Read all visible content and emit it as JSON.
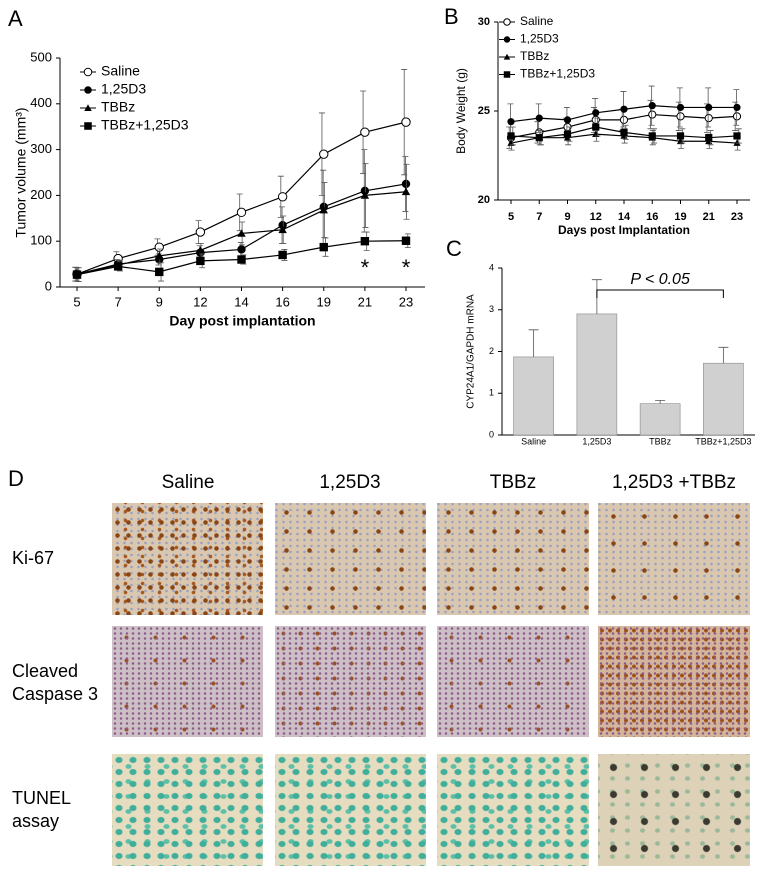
{
  "chart_data": [
    {
      "type": "line",
      "panel": "A",
      "ylabel": "Tumor volume (mm³)",
      "xlabel": "Day post implantation",
      "categories": [
        "5",
        "7",
        "9",
        "12",
        "14",
        "16",
        "19",
        "21",
        "23"
      ],
      "ylim": [
        0,
        500
      ],
      "yticks": [
        0,
        100,
        200,
        300,
        400,
        500
      ],
      "legend": "upper left",
      "series": [
        {
          "name": "Saline",
          "color": "#000000",
          "marker": "circle-open",
          "values": [
            28,
            62,
            87,
            120,
            163,
            197,
            290,
            338,
            360
          ],
          "errors": [
            15,
            15,
            18,
            25,
            40,
            45,
            90,
            90,
            115
          ]
        },
        {
          "name": "1,25D3",
          "color": "#000000",
          "marker": "circle",
          "values": [
            28,
            50,
            60,
            75,
            82,
            135,
            175,
            210,
            225
          ],
          "errors": [
            15,
            10,
            12,
            15,
            15,
            40,
            80,
            90,
            60
          ]
        },
        {
          "name": "TBBz",
          "color": "#000000",
          "marker": "triangle",
          "values": [
            27,
            48,
            68,
            80,
            117,
            125,
            168,
            200,
            208
          ],
          "errors": [
            15,
            10,
            15,
            15,
            25,
            30,
            60,
            70,
            60
          ]
        },
        {
          "name": "TBBz+1,25D3",
          "color": "#000000",
          "marker": "square",
          "values": [
            27,
            45,
            33,
            57,
            60,
            70,
            87,
            100,
            101
          ],
          "errors": [
            15,
            10,
            20,
            15,
            10,
            12,
            20,
            20,
            15
          ]
        }
      ],
      "annotations": [
        {
          "text": "*",
          "x": "21"
        },
        {
          "text": "*",
          "x": "23"
        }
      ]
    },
    {
      "type": "line",
      "panel": "B",
      "ylabel": "Body Weight (g)",
      "xlabel": "Days post Implantation",
      "categories": [
        "5",
        "7",
        "9",
        "12",
        "14",
        "16",
        "19",
        "21",
        "23"
      ],
      "ylim": [
        20,
        30
      ],
      "yticks": [
        20,
        25,
        30
      ],
      "legend": "upper left",
      "series": [
        {
          "name": "Saline",
          "color": "#000000",
          "marker": "circle-open",
          "values": [
            23.5,
            23.8,
            24.1,
            24.5,
            24.5,
            24.8,
            24.7,
            24.6,
            24.7
          ],
          "errors": [
            0.6,
            0.6,
            0.5,
            0.7,
            0.6,
            0.8,
            0.8,
            0.8,
            0.8
          ]
        },
        {
          "name": "1,25D3",
          "color": "#000000",
          "marker": "circle",
          "values": [
            24.4,
            24.6,
            24.5,
            24.9,
            25.1,
            25.3,
            25.2,
            25.2,
            25.2
          ],
          "errors": [
            1.0,
            0.8,
            0.7,
            0.8,
            1.0,
            1.1,
            1.1,
            1.1,
            1.0
          ]
        },
        {
          "name": "TBBz",
          "color": "#000000",
          "marker": "triangle",
          "values": [
            23.2,
            23.5,
            23.5,
            23.7,
            23.6,
            23.5,
            23.3,
            23.3,
            23.2
          ],
          "errors": [
            0.4,
            0.4,
            0.4,
            0.4,
            0.4,
            0.4,
            0.4,
            0.4,
            0.4
          ]
        },
        {
          "name": "TBBz+1,25D3",
          "color": "#000000",
          "marker": "square",
          "values": [
            23.6,
            23.5,
            23.7,
            24.1,
            23.8,
            23.6,
            23.6,
            23.5,
            23.6
          ],
          "errors": [
            0.5,
            0.4,
            0.4,
            0.5,
            0.4,
            0.4,
            0.4,
            0.4,
            0.4
          ]
        }
      ]
    },
    {
      "type": "bar",
      "panel": "C",
      "ylabel": "CYP24A1/GAPDH mRNA",
      "categories": [
        "Saline",
        "1,25D3",
        "TBBz",
        "TBBz+1,25D3"
      ],
      "values": [
        1.87,
        2.9,
        0.75,
        1.72
      ],
      "errors": [
        0.65,
        0.82,
        0.08,
        0.38
      ],
      "color": "#d0d0d0",
      "ylim": [
        0,
        4
      ],
      "yticks": [
        0,
        1,
        2,
        3,
        4
      ],
      "annotation": {
        "text": "P < 0.05",
        "from": "1,25D3",
        "to": "TBBz+1,25D3"
      }
    }
  ],
  "panel_d": {
    "panel": "D",
    "columns": [
      "Saline",
      "1,25D3",
      "TBBz",
      "1,25D3 +TBBz"
    ],
    "rows": [
      "Ki-67",
      "Cleaved Caspase 3",
      "TUNEL assay"
    ]
  }
}
